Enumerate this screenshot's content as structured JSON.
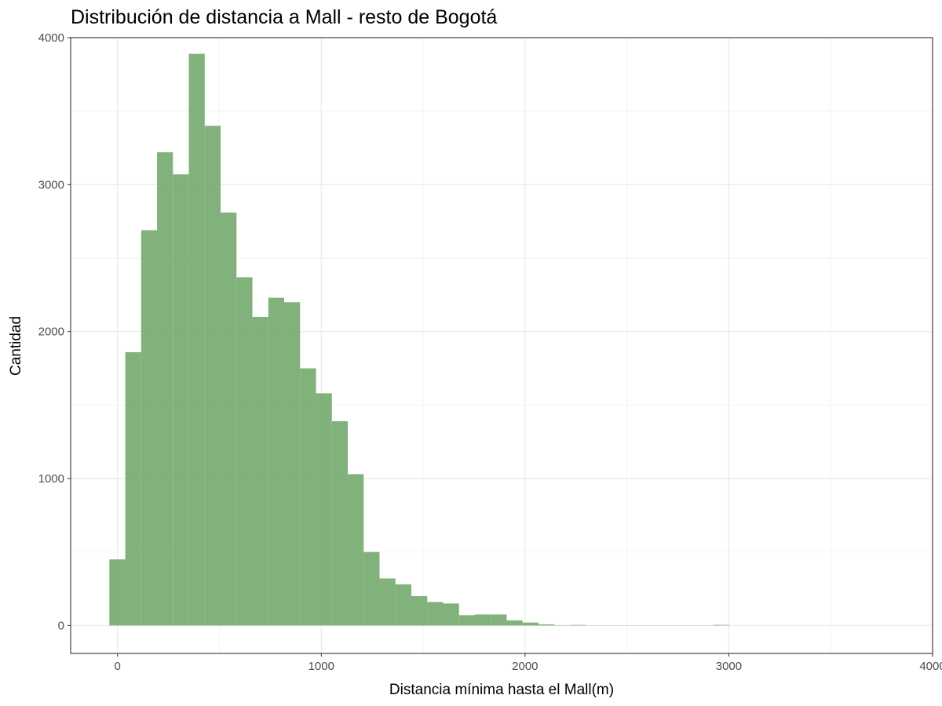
{
  "chart_data": {
    "type": "bar",
    "title": "Distribución de distancia a Mall - resto de Bogotá",
    "xlabel": "Distancia mínima hasta el Mall(m)",
    "ylabel": "Cantidad",
    "xlim": [
      -230,
      4000
    ],
    "ylim": [
      -190,
      4000
    ],
    "x_ticks": [
      0,
      1000,
      2000,
      3000,
      4000
    ],
    "y_ticks": [
      0,
      1000,
      2000,
      3000,
      4000
    ],
    "x_tick_labels": [
      "0",
      "1000",
      "2000",
      "3000",
      "4000"
    ],
    "y_tick_labels": [
      "0",
      "1000",
      "2000",
      "3000",
      "4000"
    ],
    "grid": true,
    "bin_width": 78,
    "bar_color": "#74aa6e",
    "bins": [
      {
        "start": -40,
        "end": 38,
        "count": 450
      },
      {
        "start": 38,
        "end": 116,
        "count": 1860
      },
      {
        "start": 116,
        "end": 194,
        "count": 2690
      },
      {
        "start": 194,
        "end": 272,
        "count": 3220
      },
      {
        "start": 272,
        "end": 350,
        "count": 3070
      },
      {
        "start": 350,
        "end": 428,
        "count": 3890
      },
      {
        "start": 428,
        "end": 506,
        "count": 3400
      },
      {
        "start": 506,
        "end": 584,
        "count": 2810
      },
      {
        "start": 584,
        "end": 662,
        "count": 2370
      },
      {
        "start": 662,
        "end": 740,
        "count": 2100
      },
      {
        "start": 740,
        "end": 818,
        "count": 2230
      },
      {
        "start": 818,
        "end": 896,
        "count": 2200
      },
      {
        "start": 896,
        "end": 974,
        "count": 1750
      },
      {
        "start": 974,
        "end": 1052,
        "count": 1580
      },
      {
        "start": 1052,
        "end": 1130,
        "count": 1390
      },
      {
        "start": 1130,
        "end": 1208,
        "count": 1030
      },
      {
        "start": 1208,
        "end": 1286,
        "count": 500
      },
      {
        "start": 1286,
        "end": 1364,
        "count": 320
      },
      {
        "start": 1364,
        "end": 1442,
        "count": 280
      },
      {
        "start": 1442,
        "end": 1520,
        "count": 200
      },
      {
        "start": 1520,
        "end": 1598,
        "count": 160
      },
      {
        "start": 1598,
        "end": 1676,
        "count": 150
      },
      {
        "start": 1676,
        "end": 1754,
        "count": 70
      },
      {
        "start": 1754,
        "end": 1832,
        "count": 75
      },
      {
        "start": 1832,
        "end": 1910,
        "count": 75
      },
      {
        "start": 1910,
        "end": 1988,
        "count": 35
      },
      {
        "start": 1988,
        "end": 2066,
        "count": 20
      },
      {
        "start": 2066,
        "end": 2144,
        "count": 8
      },
      {
        "start": 2144,
        "end": 2222,
        "count": 2
      },
      {
        "start": 2222,
        "end": 2300,
        "count": 4
      },
      {
        "start": 2300,
        "end": 2378,
        "count": 1
      },
      {
        "start": 2378,
        "end": 2456,
        "count": 1
      },
      {
        "start": 2456,
        "end": 2534,
        "count": 1
      },
      {
        "start": 2534,
        "end": 2612,
        "count": 1
      },
      {
        "start": 2612,
        "end": 2690,
        "count": 1
      },
      {
        "start": 2690,
        "end": 2768,
        "count": 1
      },
      {
        "start": 2768,
        "end": 2846,
        "count": 1
      },
      {
        "start": 2846,
        "end": 2924,
        "count": 1
      },
      {
        "start": 2924,
        "end": 3002,
        "count": 4
      }
    ]
  }
}
